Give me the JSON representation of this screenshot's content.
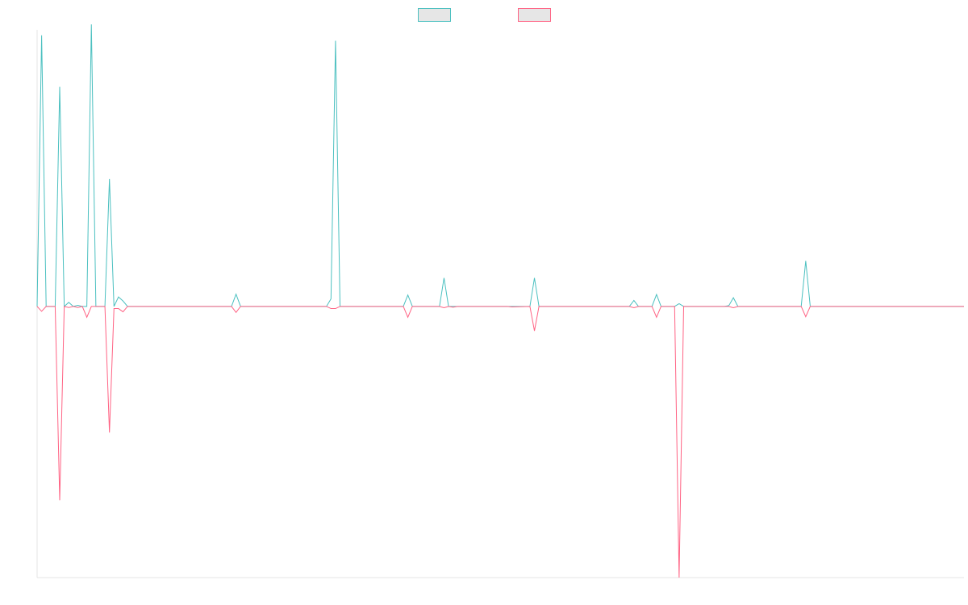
{
  "chart_data": {
    "type": "line",
    "title": "",
    "xlabel": "",
    "ylabel": "",
    "x_range": [
      0,
      205
    ],
    "ylim": [
      -1.0,
      1.02
    ],
    "grid": false,
    "legend_placement": "top-center",
    "series": [
      {
        "color": "#4bc0c0",
        "legend_fill": "#e6e6e6",
        "points": [
          [
            0,
            0
          ],
          [
            1,
            1.0
          ],
          [
            2,
            0
          ],
          [
            4,
            0
          ],
          [
            5,
            0.81
          ],
          [
            6,
            0
          ],
          [
            7,
            0.015
          ],
          [
            8,
            0
          ],
          [
            9,
            0.004
          ],
          [
            10,
            0
          ],
          [
            11,
            0
          ],
          [
            12,
            1.04
          ],
          [
            13,
            0
          ],
          [
            15,
            0
          ],
          [
            16,
            0.47
          ],
          [
            17,
            0
          ],
          [
            18,
            0.035
          ],
          [
            19,
            0.02
          ],
          [
            20,
            0
          ],
          [
            25,
            0
          ],
          [
            26,
            0
          ],
          [
            27,
            0
          ],
          [
            43,
            0
          ],
          [
            44,
            0.045
          ],
          [
            45,
            0
          ],
          [
            64,
            0
          ],
          [
            65,
            0.028
          ],
          [
            66,
            0.98
          ],
          [
            67,
            0
          ],
          [
            81,
            0
          ],
          [
            82,
            0.042
          ],
          [
            83,
            0
          ],
          [
            89,
            0
          ],
          [
            90,
            0.105
          ],
          [
            91,
            0
          ],
          [
            92,
            0
          ],
          [
            93,
            0
          ],
          [
            104,
            0
          ],
          [
            105,
            0
          ],
          [
            109,
            0
          ],
          [
            110,
            0.105
          ],
          [
            111,
            0
          ],
          [
            122,
            0
          ],
          [
            123,
            0
          ],
          [
            124,
            0
          ],
          [
            131,
            0
          ],
          [
            132,
            0.022
          ],
          [
            133,
            0
          ],
          [
            136,
            0
          ],
          [
            137,
            0.044
          ],
          [
            138,
            0
          ],
          [
            141,
            0
          ],
          [
            142,
            0.01
          ],
          [
            143,
            0
          ],
          [
            152,
            0
          ],
          [
            153,
            0.003
          ],
          [
            154,
            0.032
          ],
          [
            155,
            0
          ],
          [
            169,
            0
          ],
          [
            170,
            0.168
          ],
          [
            171,
            0
          ],
          [
            205,
            0
          ]
        ]
      },
      {
        "color": "#ff6384",
        "legend_fill": "#e6e6e6",
        "points": [
          [
            0,
            0
          ],
          [
            1,
            -0.018
          ],
          [
            2,
            0
          ],
          [
            4,
            0
          ],
          [
            5,
            -0.715
          ],
          [
            6,
            0
          ],
          [
            7,
            -0.004
          ],
          [
            8,
            0
          ],
          [
            9,
            -0.004
          ],
          [
            10,
            0
          ],
          [
            11,
            -0.04
          ],
          [
            12,
            0
          ],
          [
            15,
            0
          ],
          [
            16,
            -0.465
          ],
          [
            17,
            -0.008
          ],
          [
            18,
            -0.008
          ],
          [
            19,
            -0.02
          ],
          [
            20,
            0
          ],
          [
            25,
            0
          ],
          [
            26,
            0
          ],
          [
            27,
            0
          ],
          [
            43,
            0
          ],
          [
            44,
            -0.022
          ],
          [
            45,
            0
          ],
          [
            64,
            0
          ],
          [
            65,
            -0.008
          ],
          [
            66,
            -0.008
          ],
          [
            67,
            0
          ],
          [
            81,
            0
          ],
          [
            82,
            -0.04
          ],
          [
            83,
            0
          ],
          [
            89,
            0
          ],
          [
            90,
            -0.005
          ],
          [
            91,
            0
          ],
          [
            92,
            -0.003
          ],
          [
            93,
            0
          ],
          [
            104,
            0
          ],
          [
            105,
            -0.002
          ],
          [
            109,
            0
          ],
          [
            110,
            -0.09
          ],
          [
            111,
            0
          ],
          [
            122,
            0
          ],
          [
            123,
            0
          ],
          [
            124,
            0
          ],
          [
            131,
            0
          ],
          [
            132,
            -0.005
          ],
          [
            133,
            0
          ],
          [
            136,
            0
          ],
          [
            137,
            -0.04
          ],
          [
            138,
            0
          ],
          [
            141,
            0
          ],
          [
            142,
            -1.0
          ],
          [
            143,
            0
          ],
          [
            152,
            0
          ],
          [
            153,
            0
          ],
          [
            154,
            -0.005
          ],
          [
            155,
            0
          ],
          [
            169,
            0
          ],
          [
            170,
            -0.038
          ],
          [
            171,
            0
          ],
          [
            205,
            0
          ]
        ]
      }
    ]
  }
}
